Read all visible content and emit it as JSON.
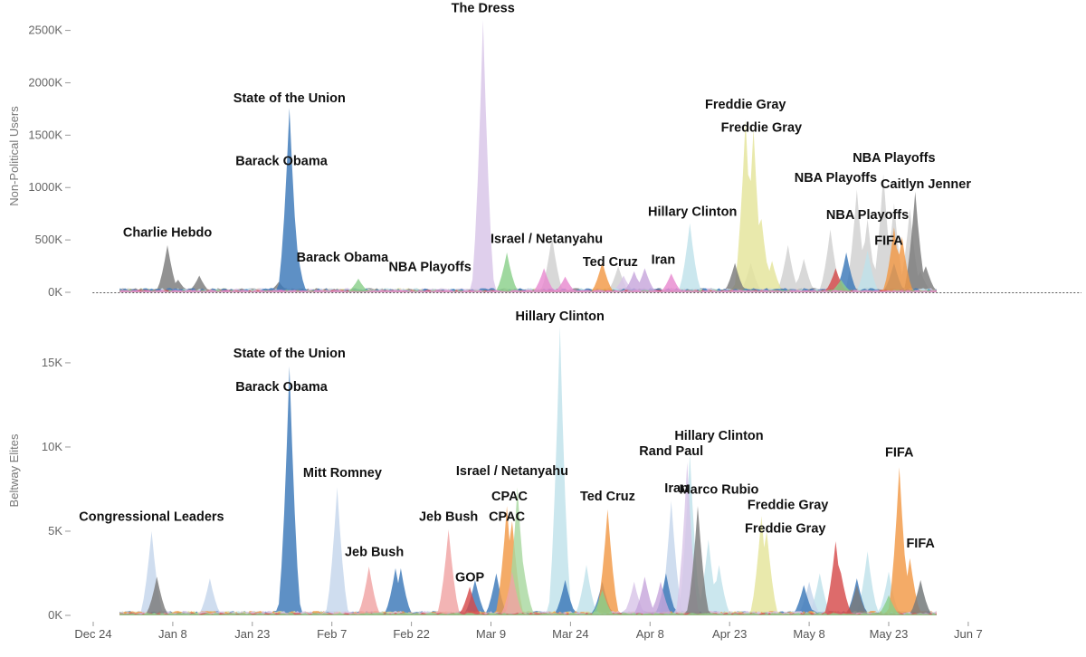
{
  "chart_data": [
    {
      "type": "area",
      "ylabel": "Non-Political Users",
      "ylim": [
        0,
        2600000
      ],
      "yticks": [
        {
          "value": 0,
          "label": "0K"
        },
        {
          "value": 500000,
          "label": "500K"
        },
        {
          "value": 1000000,
          "label": "1000K"
        },
        {
          "value": 1500000,
          "label": "1500K"
        },
        {
          "value": 2000000,
          "label": "2000K"
        },
        {
          "value": 2500000,
          "label": "2500K"
        }
      ],
      "baseline": "dotted",
      "series": [
        {
          "color": "#d0d0d0",
          "peaks": [
            [
              86.5,
              540000
            ],
            [
              99,
              250000
            ],
            [
              124,
              280000
            ],
            [
              131,
              450000
            ],
            [
              134,
              320000
            ],
            [
              139,
              600000
            ],
            [
              144,
              980000
            ],
            [
              146,
              700000
            ],
            [
              149,
              1130000
            ],
            [
              151,
              850000
            ],
            [
              154,
              800000
            ],
            [
              156,
              200000
            ]
          ]
        },
        {
          "color": "#e4e49a",
          "peaks": [
            [
              123,
              1650000
            ],
            [
              124.5,
              1560000
            ],
            [
              126,
              700000
            ],
            [
              128,
              300000
            ]
          ]
        },
        {
          "color": "#7a7a7a",
          "peaks": [
            [
              14,
              450000
            ],
            [
              16,
              120000
            ],
            [
              20,
              160000
            ],
            [
              35,
              100000
            ],
            [
              121,
              280000
            ],
            [
              155,
              960000
            ],
            [
              157,
              250000
            ]
          ]
        },
        {
          "color": "#d8c5e8",
          "peaks": [
            [
              73.5,
              2620000
            ],
            [
              100,
              160000
            ]
          ]
        },
        {
          "color": "#bfe2ea",
          "peaks": [
            [
              112.5,
              660000
            ],
            [
              146,
              400000
            ]
          ]
        },
        {
          "color": "#3a78b8",
          "peaks": [
            [
              37,
              1760000
            ],
            [
              38,
              600000
            ],
            [
              142,
              380000
            ],
            [
              151,
              280000
            ]
          ]
        },
        {
          "color": "#f29945",
          "peaks": [
            [
              96,
              290000
            ],
            [
              151,
              620000
            ],
            [
              152.5,
              530000
            ]
          ]
        },
        {
          "color": "#c7a6dc",
          "peaks": [
            [
              102,
              200000
            ],
            [
              104,
              230000
            ]
          ]
        },
        {
          "color": "#d64a4a",
          "peaks": [
            [
              140,
              230000
            ]
          ]
        },
        {
          "color": "#8ad08a",
          "peaks": [
            [
              50,
              130000
            ],
            [
              78,
              380000
            ],
            [
              141,
              120000
            ]
          ]
        },
        {
          "color": "#e88ad0",
          "peaks": [
            [
              85,
              230000
            ],
            [
              89,
              150000
            ],
            [
              109,
              180000
            ]
          ]
        }
      ],
      "annotations": [
        {
          "text": "The Dress",
          "x": 73.5,
          "y": 2620000
        },
        {
          "text": "State of the Union",
          "x": 37,
          "y": 1760000
        },
        {
          "text": "Barack Obama",
          "x": 35.5,
          "y": 1160000
        },
        {
          "text": "Charlie Hebdo",
          "x": 14,
          "y": 480000
        },
        {
          "text": "Barack Obama",
          "x": 47,
          "y": 240000
        },
        {
          "text": "NBA Playoffs",
          "x": 63.5,
          "y": 150000
        },
        {
          "text": "Israel / Netanyahu",
          "x": 85.5,
          "y": 420000
        },
        {
          "text": "Ted Cruz",
          "x": 97.5,
          "y": 200000
        },
        {
          "text": "Iran",
          "x": 107.5,
          "y": 220000
        },
        {
          "text": "Hillary Clinton",
          "x": 113,
          "y": 680000
        },
        {
          "text": "Freddie Gray",
          "x": 123,
          "y": 1700000
        },
        {
          "text": "Freddie Gray",
          "x": 126,
          "y": 1480000
        },
        {
          "text": "NBA Playoffs",
          "x": 140,
          "y": 1000000
        },
        {
          "text": "NBA Playoffs",
          "x": 146,
          "y": 650000
        },
        {
          "text": "NBA Playoffs",
          "x": 151,
          "y": 1190000
        },
        {
          "text": "FIFA",
          "x": 150,
          "y": 400000
        },
        {
          "text": "Caitlyn Jenner",
          "x": 157,
          "y": 940000
        }
      ]
    },
    {
      "type": "area",
      "ylabel": "Beltway Elites",
      "ylim": [
        0,
        17200
      ],
      "yticks": [
        {
          "value": 0,
          "label": "0K"
        },
        {
          "value": 5000,
          "label": "5K"
        },
        {
          "value": 10000,
          "label": "10K"
        },
        {
          "value": 15000,
          "label": "15K"
        }
      ],
      "series": [
        {
          "color": "#bfe2ea",
          "peaks": [
            [
              88,
              17200
            ],
            [
              93,
              3000
            ],
            [
              112.5,
              9600
            ],
            [
              116,
              4500
            ],
            [
              118,
              3000
            ],
            [
              137,
              2500
            ],
            [
              146,
              3800
            ],
            [
              150,
              2600
            ],
            [
              156,
              2000
            ]
          ]
        },
        {
          "color": "#c5d5eb",
          "peaks": [
            [
              11,
              5000
            ],
            [
              22,
              2200
            ],
            [
              46,
              7600
            ],
            [
              109,
              6800
            ],
            [
              135,
              2000
            ]
          ]
        },
        {
          "color": "#3a78b8",
          "peaks": [
            [
              37,
              14800
            ],
            [
              57,
              2800
            ],
            [
              58,
              2800
            ],
            [
              72,
              2100
            ],
            [
              76,
              2500
            ],
            [
              89,
              2100
            ],
            [
              96,
              2000
            ],
            [
              108,
              2500
            ],
            [
              134,
              1800
            ],
            [
              144,
              2200
            ]
          ]
        },
        {
          "color": "#e4e49a",
          "peaks": [
            [
              126,
              5900
            ],
            [
              127,
              5000
            ]
          ]
        },
        {
          "color": "#f29945",
          "peaks": [
            [
              78,
              6500
            ],
            [
              79,
              5600
            ],
            [
              97,
              6300
            ],
            [
              152,
              8800
            ],
            [
              154,
              3400
            ]
          ]
        },
        {
          "color": "#d8c5e8",
          "peaks": [
            [
              112,
              9100
            ],
            [
              102,
              2000
            ]
          ]
        },
        {
          "color": "#a8d8a0",
          "peaks": [
            [
              80,
              7600
            ],
            [
              81,
              3200
            ]
          ]
        },
        {
          "color": "#7a7a7a",
          "peaks": [
            [
              114,
              6500
            ],
            [
              12,
              2300
            ],
            [
              144,
              1800
            ],
            [
              156,
              2100
            ]
          ]
        },
        {
          "color": "#f0a3a3",
          "peaks": [
            [
              52,
              2900
            ],
            [
              67,
              5100
            ],
            [
              79,
              2600
            ]
          ]
        },
        {
          "color": "#c7a6dc",
          "peaks": [
            [
              104,
              2300
            ],
            [
              107,
              2000
            ]
          ]
        },
        {
          "color": "#d64a4a",
          "peaks": [
            [
              71,
              1700
            ],
            [
              140,
              4400
            ],
            [
              141,
              2500
            ]
          ]
        },
        {
          "color": "#8ad08a",
          "peaks": [
            [
              96,
              1500
            ],
            [
              150,
              1200
            ]
          ]
        }
      ],
      "annotations": [
        {
          "text": "Hillary Clinton",
          "x": 88,
          "y": 17200
        },
        {
          "text": "State of the Union",
          "x": 37,
          "y": 15000
        },
        {
          "text": "Barack Obama",
          "x": 35.5,
          "y": 13000
        },
        {
          "text": "Mitt Romney",
          "x": 47,
          "y": 7900
        },
        {
          "text": "Congressional Leaders",
          "x": 11,
          "y": 5300
        },
        {
          "text": "Jeb Bush",
          "x": 53,
          "y": 3200
        },
        {
          "text": "Jeb Bush",
          "x": 67,
          "y": 5300
        },
        {
          "text": "Israel / Netanyahu",
          "x": 79,
          "y": 8000
        },
        {
          "text": "CPAC",
          "x": 78.5,
          "y": 6500
        },
        {
          "text": "CPAC",
          "x": 78,
          "y": 5300
        },
        {
          "text": "GOP",
          "x": 71,
          "y": 1700
        },
        {
          "text": "Ted Cruz",
          "x": 97,
          "y": 6500
        },
        {
          "text": "Rand Paul",
          "x": 109,
          "y": 9200
        },
        {
          "text": "Iran",
          "x": 110,
          "y": 7000
        },
        {
          "text": "Hillary Clinton",
          "x": 118,
          "y": 10100
        },
        {
          "text": "Marco Rubio",
          "x": 118,
          "y": 6900
        },
        {
          "text": "Freddie Gray",
          "x": 131,
          "y": 6000
        },
        {
          "text": "Freddie Gray",
          "x": 130.5,
          "y": 4600
        },
        {
          "text": "FIFA",
          "x": 152,
          "y": 9100
        },
        {
          "text": "FIFA",
          "x": 156,
          "y": 3700
        }
      ]
    }
  ],
  "x_axis": {
    "ticks": [
      {
        "day": 0,
        "label": "Dec 24"
      },
      {
        "day": 15,
        "label": "Jan 8"
      },
      {
        "day": 30,
        "label": "Jan 23"
      },
      {
        "day": 45,
        "label": "Feb 7"
      },
      {
        "day": 60,
        "label": "Feb 22"
      },
      {
        "day": 75,
        "label": "Mar 9"
      },
      {
        "day": 90,
        "label": "Mar 24"
      },
      {
        "day": 105,
        "label": "Apr 8"
      },
      {
        "day": 120,
        "label": "Apr 23"
      },
      {
        "day": 135,
        "label": "May 8"
      },
      {
        "day": 150,
        "label": "May 23"
      },
      {
        "day": 165,
        "label": "Jun 7"
      }
    ],
    "data_range": [
      5,
      159
    ]
  }
}
